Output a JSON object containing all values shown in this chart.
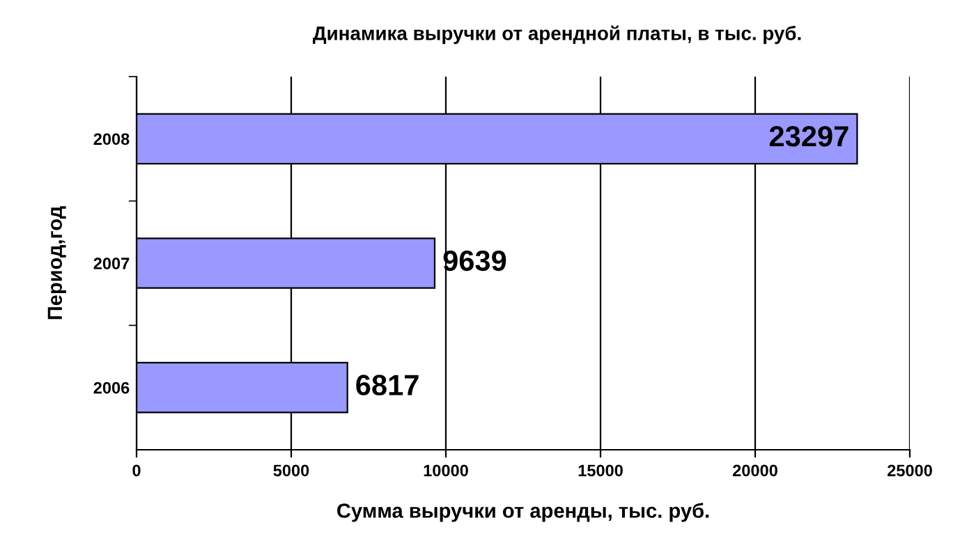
{
  "chart_data": {
    "type": "bar",
    "orientation": "horizontal",
    "title": "Динамика выручки от арендной платы, в тыс. руб.",
    "xlabel": "Сумма выручки от аренды, тыс. руб.",
    "ylabel": "Период,год",
    "categories": [
      "2008",
      "2007",
      "2006"
    ],
    "series": [
      {
        "color": "#9999ff",
        "values": [
          23297,
          9639,
          6817
        ]
      }
    ],
    "xlim": [
      0,
      25000
    ],
    "xticks": [
      0,
      5000,
      10000,
      15000,
      20000,
      25000
    ],
    "grid": "x",
    "data_labels": true,
    "legend": false
  }
}
